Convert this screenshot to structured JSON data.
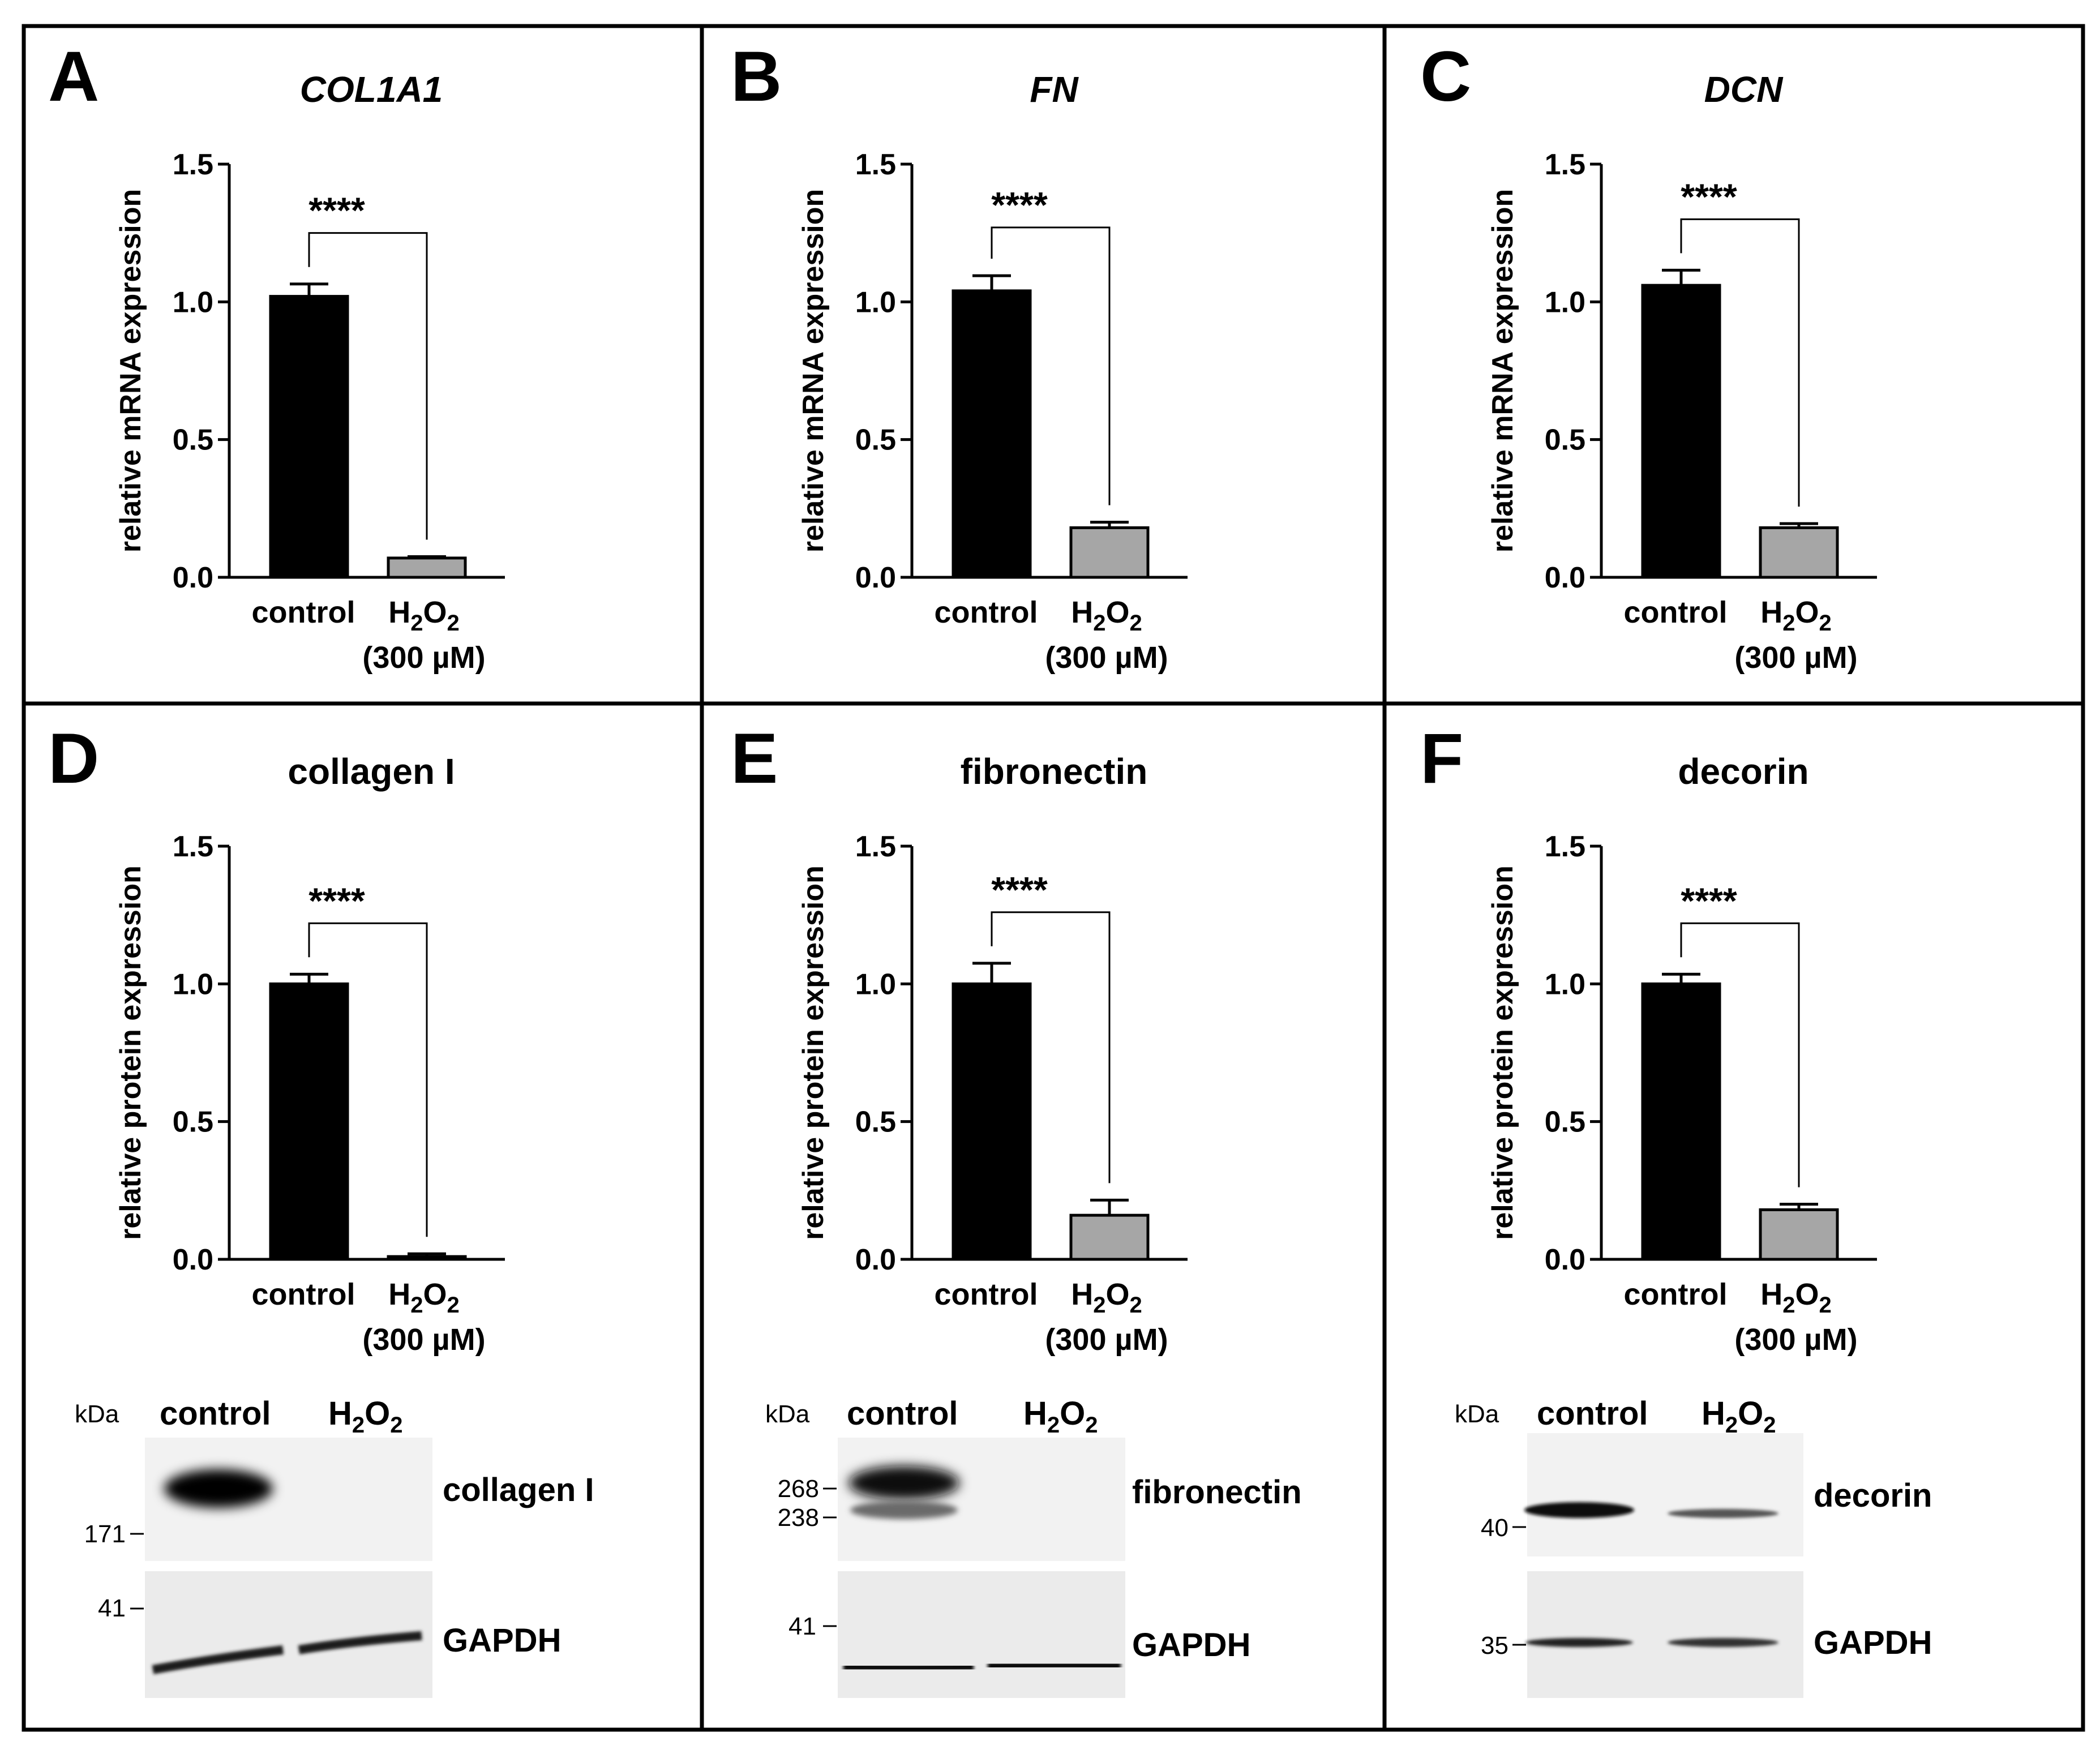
{
  "figure": {
    "colors": {
      "control_bar": "#000000",
      "h2o2_bar": "#a6a6a6",
      "frame": "#000000"
    }
  },
  "chart_data": [
    {
      "panel": "A",
      "type": "bar",
      "title": "COL1A1",
      "title_italic": true,
      "ylabel": "relative mRNA expression",
      "ylim": [
        0,
        1.5
      ],
      "yticks": [
        "0.0",
        "0.5",
        "1.0",
        "1.5"
      ],
      "categories": [
        {
          "label": "control",
          "value": 1.02,
          "err": 0.045
        },
        {
          "label": "H2O2",
          "label_main": "H",
          "sub1": "2",
          "mid": "O",
          "sub2": "2",
          "label_line2": "(300 µM)",
          "value": 0.07,
          "err": 0.005
        }
      ],
      "significance": "****",
      "bracket_y": 1.25
    },
    {
      "panel": "B",
      "type": "bar",
      "title": "FN",
      "title_italic": true,
      "ylabel": "relative mRNA expression",
      "ylim": [
        0,
        1.5
      ],
      "yticks": [
        "0.0",
        "0.5",
        "1.0",
        "1.5"
      ],
      "categories": [
        {
          "label": "control",
          "value": 1.04,
          "err": 0.055
        },
        {
          "label": "H2O2",
          "label_main": "H",
          "sub1": "2",
          "mid": "O",
          "sub2": "2",
          "label_line2": "(300 µM)",
          "value": 0.18,
          "err": 0.02
        }
      ],
      "significance": "****",
      "bracket_y": 1.27
    },
    {
      "panel": "C",
      "type": "bar",
      "title": "DCN",
      "title_italic": true,
      "ylabel": "relative mRNA expression",
      "ylim": [
        0,
        1.5
      ],
      "yticks": [
        "0.0",
        "0.5",
        "1.0",
        "1.5"
      ],
      "categories": [
        {
          "label": "control",
          "value": 1.06,
          "err": 0.055
        },
        {
          "label": "H2O2",
          "label_main": "H",
          "sub1": "2",
          "mid": "O",
          "sub2": "2",
          "label_line2": "(300 µM)",
          "value": 0.18,
          "err": 0.015
        }
      ],
      "significance": "****",
      "bracket_y": 1.3
    },
    {
      "panel": "D",
      "type": "bar",
      "title": "collagen I",
      "title_italic": false,
      "ylabel": "relative protein expression",
      "ylim": [
        0,
        1.5
      ],
      "yticks": [
        "0.0",
        "0.5",
        "1.0",
        "1.5"
      ],
      "categories": [
        {
          "label": "control",
          "value": 1.0,
          "err": 0.035
        },
        {
          "label": "H2O2",
          "label_main": "H",
          "sub1": "2",
          "mid": "O",
          "sub2": "2",
          "label_line2": "(300 µM)",
          "value": 0.01,
          "err": 0.01
        }
      ],
      "significance": "****",
      "bracket_y": 1.22
    },
    {
      "panel": "E",
      "type": "bar",
      "title": "fibronectin",
      "title_italic": false,
      "ylabel": "relative protein expression",
      "ylim": [
        0,
        1.5
      ],
      "yticks": [
        "0.0",
        "0.5",
        "1.0",
        "1.5"
      ],
      "categories": [
        {
          "label": "control",
          "value": 1.0,
          "err": 0.075
        },
        {
          "label": "H2O2",
          "label_main": "H",
          "sub1": "2",
          "mid": "O",
          "sub2": "2",
          "label_line2": "(300 µM)",
          "value": 0.16,
          "err": 0.055
        }
      ],
      "significance": "****",
      "bracket_y": 1.26
    },
    {
      "panel": "F",
      "type": "bar",
      "title": "decorin",
      "title_italic": false,
      "ylabel": "relative protein expression",
      "ylim": [
        0,
        1.5
      ],
      "yticks": [
        "0.0",
        "0.5",
        "1.0",
        "1.5"
      ],
      "categories": [
        {
          "label": "control",
          "value": 1.0,
          "err": 0.035
        },
        {
          "label": "H2O2",
          "label_main": "H",
          "sub1": "2",
          "mid": "O",
          "sub2": "2",
          "label_line2": "(300 µM)",
          "value": 0.18,
          "err": 0.02
        }
      ],
      "significance": "****",
      "bracket_y": 1.22
    }
  ],
  "blots": [
    {
      "panel": "D",
      "unit": "kDa",
      "lanes": {
        "control": "control",
        "h_main": "H",
        "h_sub1": "2",
        "h_mid": "O",
        "h_sub2": "2"
      },
      "target": {
        "label": "collagen I",
        "markers": [
          "171"
        ]
      },
      "loading": {
        "label": "GAPDH",
        "markers": [
          "41"
        ]
      }
    },
    {
      "panel": "E",
      "unit": "kDa",
      "lanes": {
        "control": "control",
        "h_main": "H",
        "h_sub1": "2",
        "h_mid": "O",
        "h_sub2": "2"
      },
      "target": {
        "label": "fibronectin",
        "markers": [
          "268",
          "238"
        ]
      },
      "loading": {
        "label": "GAPDH",
        "markers": [
          "41"
        ]
      }
    },
    {
      "panel": "F",
      "unit": "kDa",
      "lanes": {
        "control": "control",
        "h_main": "H",
        "h_sub1": "2",
        "h_mid": "O",
        "h_sub2": "2"
      },
      "target": {
        "label": "decorin",
        "markers": [
          "40"
        ]
      },
      "loading": {
        "label": "GAPDH",
        "markers": [
          "35"
        ]
      }
    }
  ]
}
